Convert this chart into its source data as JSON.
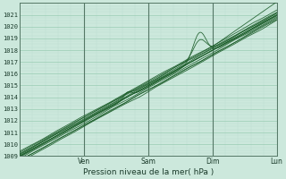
{
  "title": "",
  "xlabel": "Pression niveau de la mer( hPa )",
  "ylabel": "",
  "bg_color": "#cce8dc",
  "grid_major_color": "#99ccb3",
  "grid_minor_color": "#bbddd0",
  "line_color": "#1a5c28",
  "ylim": [
    1009,
    1022
  ],
  "ytick_min": 1009,
  "ytick_max": 1021,
  "ytick_step": 1,
  "day_labels": [
    "Ven",
    "Sam",
    "Dim",
    "Lun"
  ],
  "day_positions": [
    0.25,
    0.5,
    0.75,
    1.0
  ],
  "total_points": 300,
  "xlim": [
    0,
    1
  ]
}
